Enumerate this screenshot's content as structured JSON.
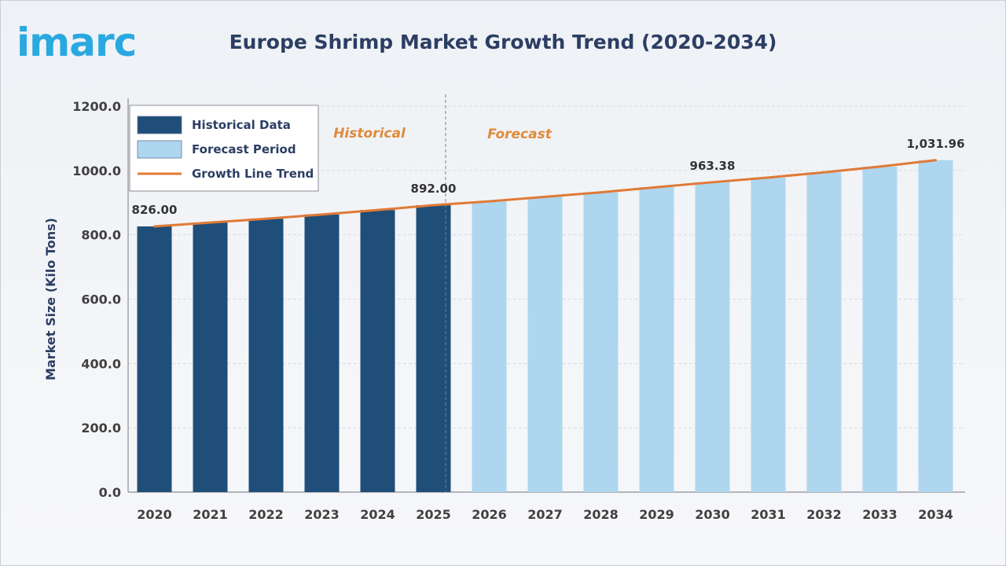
{
  "brand": {
    "logo_text": "imarc",
    "logo_color": "#2aa8e0"
  },
  "chart_data": {
    "type": "bar",
    "title": "Europe Shrimp Market Growth Trend (2020-2034)",
    "xlabel": "",
    "ylabel": "Market Size (Kilo Tons)",
    "ylim": [
      0,
      1200
    ],
    "yticks": [
      "0.0",
      "200.0",
      "400.0",
      "600.0",
      "800.0",
      "1000.0",
      "1200.0"
    ],
    "grid": true,
    "legend_position": "top-left",
    "categories": [
      "2020",
      "2021",
      "2022",
      "2023",
      "2024",
      "2025",
      "2026",
      "2027",
      "2028",
      "2029",
      "2030",
      "2031",
      "2032",
      "2033",
      "2034"
    ],
    "series": [
      {
        "name": "Historical Data",
        "color": "#1f4e79",
        "values": [
          826.0,
          838.0,
          850.0,
          863.0,
          877.0,
          892.0,
          null,
          null,
          null,
          null,
          null,
          null,
          null,
          null,
          null
        ]
      },
      {
        "name": "Forecast Period",
        "color": "#aed6ef",
        "values": [
          null,
          null,
          null,
          null,
          null,
          null,
          904.0,
          918.0,
          932.0,
          948.0,
          963.38,
          978.0,
          994.0,
          1012.0,
          1031.96
        ]
      },
      {
        "name": "Growth Line Trend",
        "type": "line",
        "color": "#e07a36",
        "values": [
          826.0,
          838.0,
          850.0,
          863.0,
          877.0,
          892.0,
          904.0,
          918.0,
          932.0,
          948.0,
          963.38,
          978.0,
          994.0,
          1012.0,
          1031.96
        ]
      }
    ],
    "data_labels": [
      {
        "category": "2020",
        "text": "826.00"
      },
      {
        "category": "2025",
        "text": "892.00"
      },
      {
        "category": "2030",
        "text": "963.38"
      },
      {
        "category": "2034",
        "text": "1,031.96"
      }
    ],
    "annotations": {
      "historical": "Historical",
      "forecast": "Forecast",
      "divider_after": "2025"
    }
  }
}
